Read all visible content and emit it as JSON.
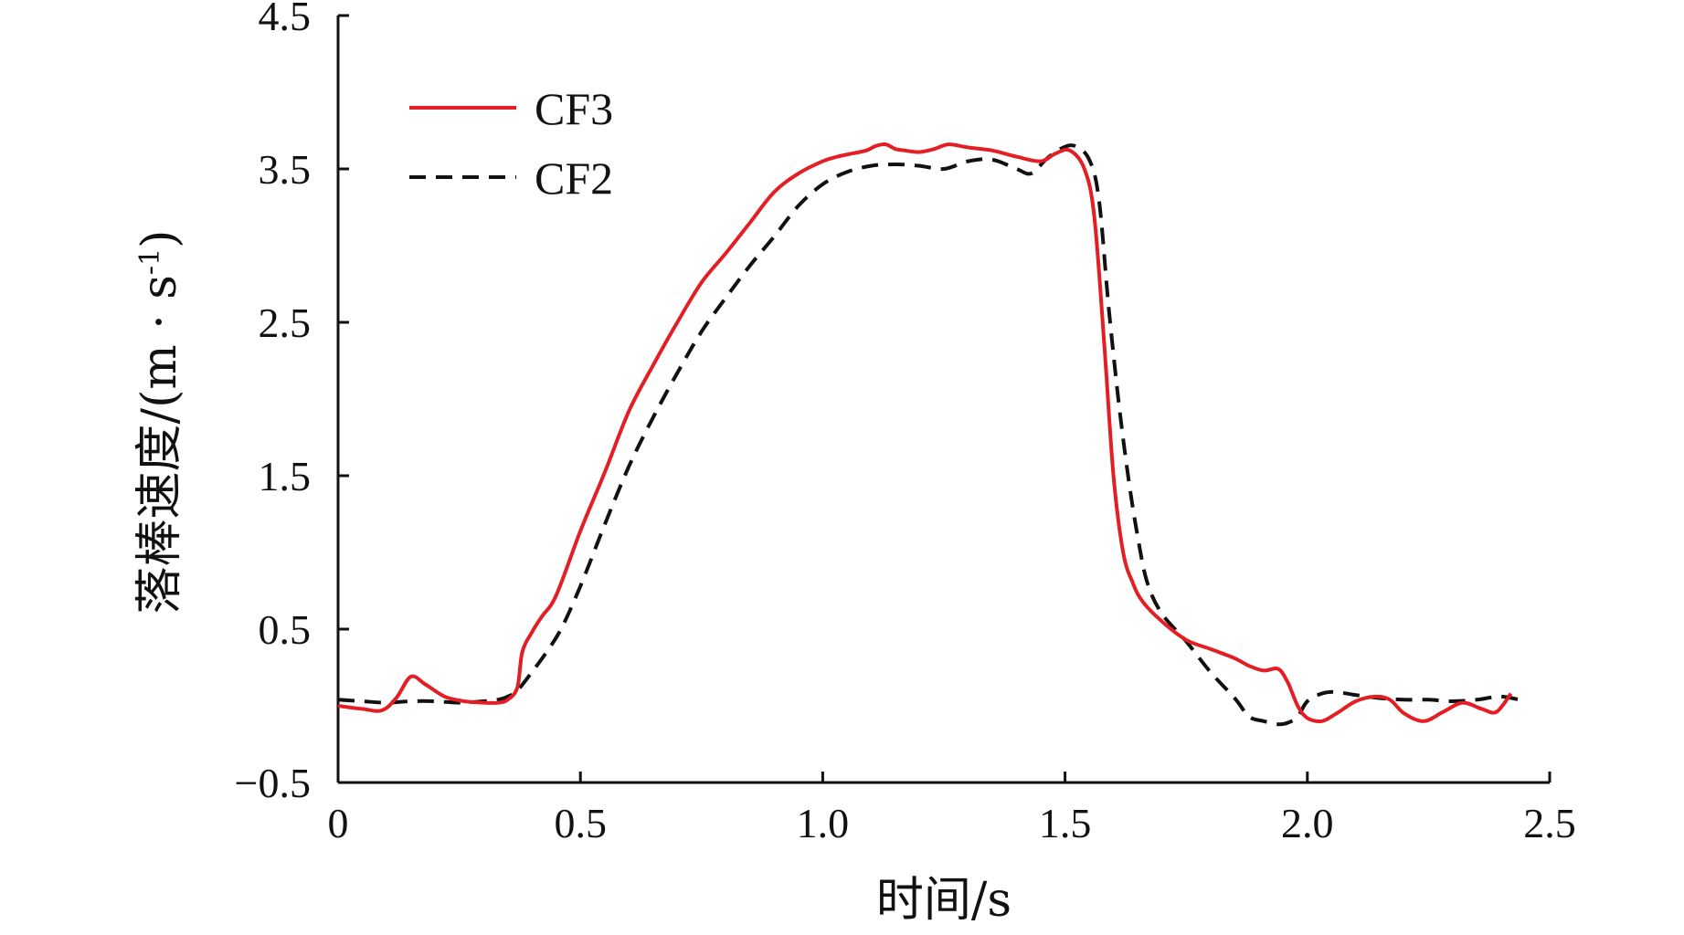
{
  "chart_data": {
    "type": "line",
    "xlabel": "时间/s",
    "ylabel": "落棒速度/(m · s",
    "ylabel_superscript": "-1",
    "ylabel_close": ")",
    "xlim": [
      0,
      2.5
    ],
    "ylim": [
      -0.5,
      4.5
    ],
    "xticks": [
      0,
      0.5,
      1.0,
      1.5,
      2.0,
      2.5
    ],
    "xtick_labels": [
      "0",
      "0.5",
      "1.0",
      "1.5",
      "2.0",
      "2.5"
    ],
    "yticks": [
      -0.5,
      0.5,
      1.5,
      2.5,
      3.5,
      4.5
    ],
    "ytick_labels": [
      "−0.5",
      "0.5",
      "1.5",
      "2.5",
      "3.5",
      "4.5"
    ],
    "grid": false,
    "legend_position": "top-left",
    "series": [
      {
        "name": "CF3",
        "color": "#e31e24",
        "style": "solid",
        "x": [
          0,
          0.05,
          0.09,
          0.12,
          0.15,
          0.18,
          0.22,
          0.26,
          0.3,
          0.33,
          0.35,
          0.37,
          0.38,
          0.4,
          0.42,
          0.45,
          0.5,
          0.55,
          0.6,
          0.65,
          0.7,
          0.75,
          0.8,
          0.85,
          0.9,
          0.95,
          1.0,
          1.03,
          1.06,
          1.09,
          1.11,
          1.13,
          1.15,
          1.17,
          1.2,
          1.23,
          1.26,
          1.3,
          1.35,
          1.4,
          1.45,
          1.48,
          1.51,
          1.54,
          1.56,
          1.58,
          1.6,
          1.62,
          1.64,
          1.66,
          1.7,
          1.75,
          1.8,
          1.85,
          1.88,
          1.91,
          1.94,
          1.96,
          1.98,
          2.0,
          2.03,
          2.06,
          2.1,
          2.14,
          2.17,
          2.2,
          2.24,
          2.28,
          2.32,
          2.36,
          2.39,
          2.42
        ],
        "y": [
          0.0,
          -0.02,
          -0.03,
          0.05,
          0.19,
          0.14,
          0.06,
          0.03,
          0.02,
          0.02,
          0.04,
          0.12,
          0.35,
          0.48,
          0.58,
          0.72,
          1.14,
          1.52,
          1.92,
          2.22,
          2.5,
          2.76,
          2.95,
          3.15,
          3.35,
          3.47,
          3.55,
          3.58,
          3.6,
          3.62,
          3.65,
          3.66,
          3.63,
          3.62,
          3.61,
          3.63,
          3.66,
          3.64,
          3.62,
          3.58,
          3.55,
          3.6,
          3.62,
          3.5,
          3.2,
          2.4,
          1.5,
          1.0,
          0.8,
          0.68,
          0.55,
          0.43,
          0.37,
          0.31,
          0.26,
          0.23,
          0.24,
          0.15,
          0.0,
          -0.08,
          -0.1,
          -0.05,
          0.03,
          0.06,
          0.04,
          -0.05,
          -0.1,
          -0.04,
          0.02,
          -0.02,
          -0.04,
          0.08
        ]
      },
      {
        "name": "CF2",
        "color": "#111111",
        "style": "dashed",
        "x": [
          0,
          0.05,
          0.1,
          0.15,
          0.2,
          0.25,
          0.3,
          0.33,
          0.35,
          0.37,
          0.4,
          0.43,
          0.46,
          0.5,
          0.55,
          0.6,
          0.65,
          0.7,
          0.75,
          0.8,
          0.85,
          0.9,
          0.95,
          1.0,
          1.05,
          1.1,
          1.15,
          1.2,
          1.25,
          1.3,
          1.35,
          1.4,
          1.43,
          1.46,
          1.49,
          1.52,
          1.55,
          1.57,
          1.59,
          1.61,
          1.63,
          1.65,
          1.67,
          1.7,
          1.75,
          1.8,
          1.85,
          1.88,
          1.91,
          1.94,
          1.96,
          1.98,
          2.0,
          2.03,
          2.06,
          2.1,
          2.15,
          2.2,
          2.25,
          2.3,
          2.35,
          2.4,
          2.45
        ],
        "y": [
          0.04,
          0.03,
          0.02,
          0.03,
          0.03,
          0.02,
          0.03,
          0.04,
          0.06,
          0.1,
          0.22,
          0.35,
          0.5,
          0.78,
          1.18,
          1.56,
          1.88,
          2.17,
          2.44,
          2.66,
          2.87,
          3.06,
          3.26,
          3.4,
          3.48,
          3.52,
          3.53,
          3.52,
          3.5,
          3.55,
          3.56,
          3.5,
          3.47,
          3.56,
          3.63,
          3.65,
          3.56,
          3.3,
          2.6,
          2.0,
          1.5,
          1.1,
          0.8,
          0.6,
          0.42,
          0.22,
          0.05,
          -0.07,
          -0.1,
          -0.12,
          -0.11,
          -0.07,
          0.03,
          0.08,
          0.09,
          0.07,
          0.05,
          0.04,
          0.04,
          0.03,
          0.04,
          0.06,
          0.03
        ]
      }
    ]
  }
}
